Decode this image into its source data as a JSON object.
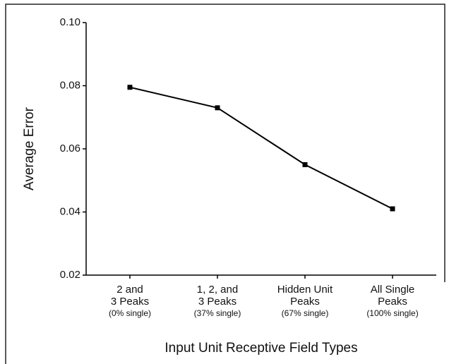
{
  "chart_data": {
    "type": "line",
    "xlabel": "Input Unit Receptive Field Types",
    "ylabel": "Average Error",
    "categories": [
      [
        "2 and",
        "3 Peaks",
        "(0% single)"
      ],
      [
        "1, 2, and",
        "3 Peaks",
        "(37% single)"
      ],
      [
        "Hidden Unit",
        "Peaks",
        "(67% single)"
      ],
      [
        "All Single",
        "Peaks",
        "(100% single)"
      ]
    ],
    "values": [
      0.0795,
      0.073,
      0.055,
      0.041
    ],
    "color": "#000000",
    "ylim": [
      0.02,
      0.1
    ],
    "yticks": [
      0.02,
      0.04,
      0.06,
      0.08,
      {
        "value": 0.1,
        "label": "0.10"
      }
    ]
  }
}
